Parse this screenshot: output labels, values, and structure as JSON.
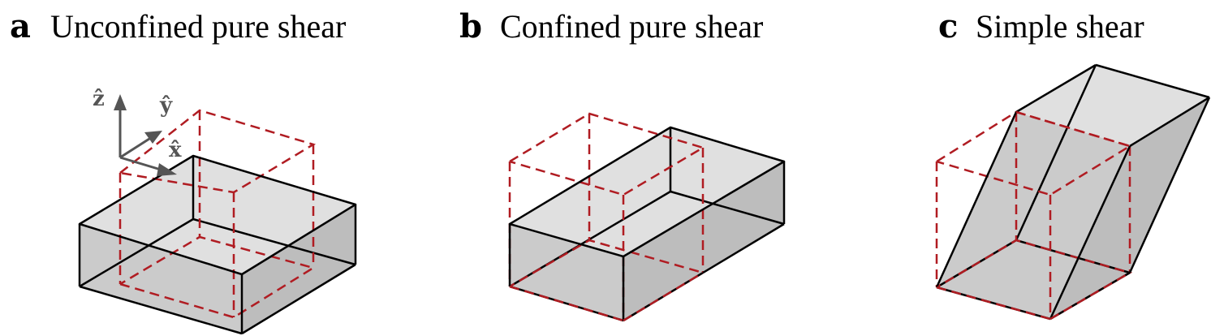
{
  "panels": [
    {
      "letter": "a",
      "title": "Unconfined pure shear"
    },
    {
      "letter": "b",
      "title": "Confined pure shear"
    },
    {
      "letter": "c",
      "title": "Simple shear"
    }
  ],
  "axes": {
    "z": "ẑ",
    "y": "ŷ",
    "x": "x̂"
  },
  "colors": {
    "reference_cube": "#b01c22",
    "top_face": "#e0e0e0",
    "front_face": "#cbcbcb",
    "side_face": "#bdbdbd",
    "axis": "#555555"
  }
}
